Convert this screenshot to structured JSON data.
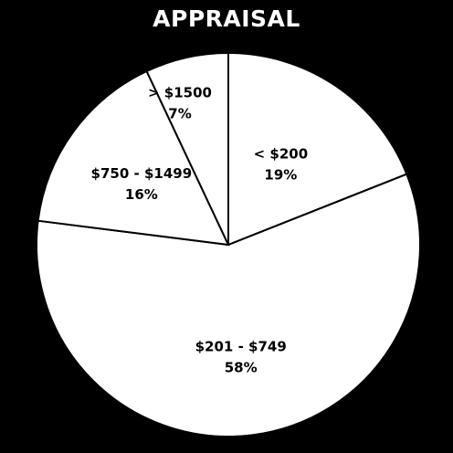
{
  "chart_data": {
    "type": "pie",
    "title": "APPRAISAL",
    "slices": [
      {
        "label": "< $200",
        "value": 19,
        "value_label": "19%"
      },
      {
        "label": "$201 - $749",
        "value": 58,
        "value_label": "58%"
      },
      {
        "label": "$750 - $1499",
        "value": 16,
        "value_label": "16%"
      },
      {
        "label": "> $1500",
        "value": 7,
        "value_label": "7%"
      }
    ],
    "slice_color": "#ffffff",
    "border_color": "#000000",
    "background": "#000000",
    "start_angle": "12 o'clock",
    "direction": "clockwise"
  }
}
